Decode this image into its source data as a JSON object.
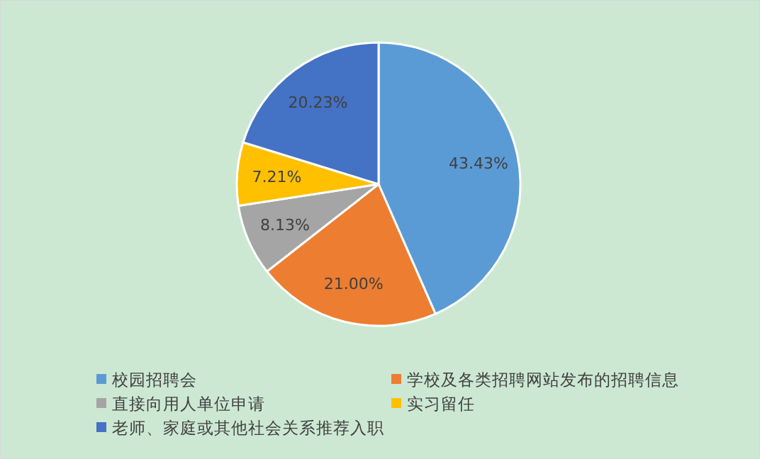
{
  "chart_data": {
    "type": "pie",
    "categories": [
      "校园招聘会",
      "学校及各类招聘网站发布的招聘信息",
      "直接向用人单位申请",
      "实习留任",
      "老师、家庭或其他社会关系推荐入职"
    ],
    "values": [
      43.43,
      21.0,
      8.13,
      7.21,
      20.23
    ],
    "value_labels": [
      "43.43%",
      "21.00%",
      "8.13%",
      "7.21%",
      "20.23%"
    ],
    "colors": [
      "#5b9bd5",
      "#ed7d31",
      "#a5a5a5",
      "#ffc000",
      "#4472c4"
    ],
    "legend": "bottom"
  }
}
